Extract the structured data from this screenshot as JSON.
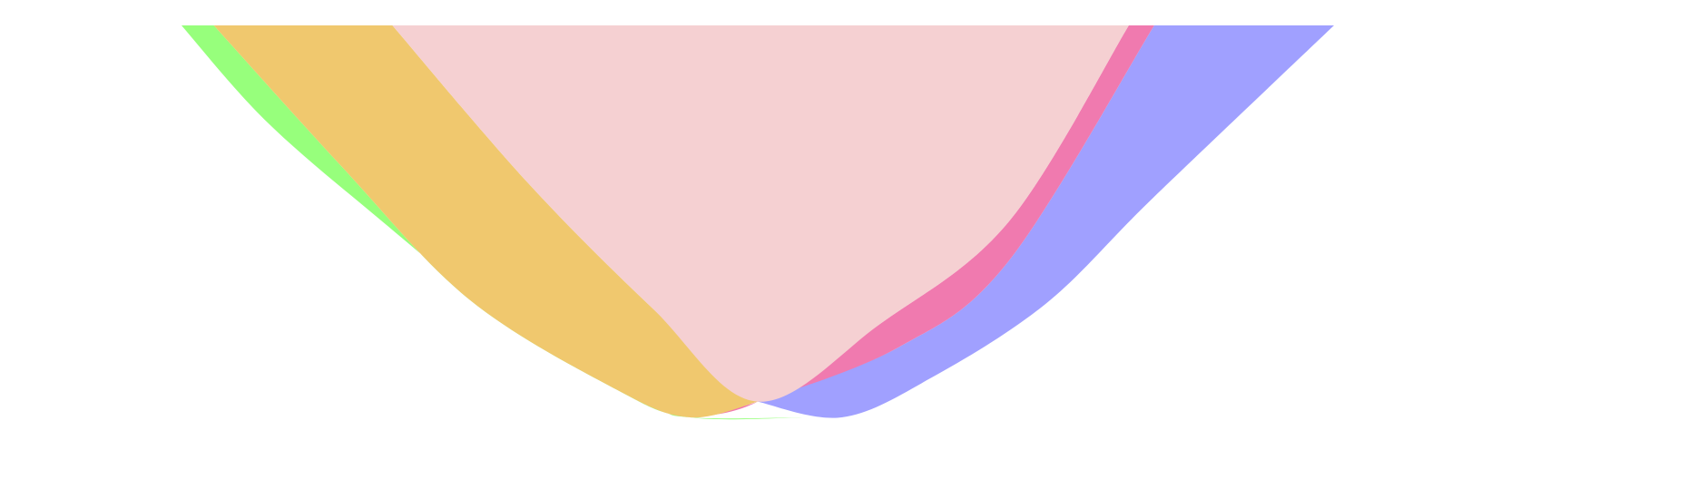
{
  "chart_data": {
    "type": "area",
    "title": "",
    "xlabel": "",
    "ylabel": "",
    "grid": false,
    "legend": "none",
    "xlim": [
      0,
      1
    ],
    "ylim": [
      0,
      1
    ],
    "series": [
      {
        "color": "#97FF7C",
        "opacity": 1,
        "lower": [
          [
            0.0,
            1.0
          ],
          [
            0.072,
            0.76
          ],
          [
            0.166,
            0.52
          ],
          [
            0.285,
            0.24
          ],
          [
            0.405,
            0.04
          ],
          [
            0.441,
            0.0
          ],
          [
            0.541,
            0.0
          ]
        ],
        "upper": [
          [
            0.028,
            1.0
          ],
          [
            0.139,
            0.64
          ],
          [
            0.25,
            0.3
          ],
          [
            0.378,
            0.07
          ],
          [
            0.441,
            0.0
          ],
          [
            0.541,
            0.0
          ]
        ]
      },
      {
        "color": "#A0A0FF",
        "opacity": 1,
        "lower": [
          [
            0.5,
            0.04
          ],
          [
            0.573,
            0.0
          ],
          [
            0.65,
            0.1
          ],
          [
            0.75,
            0.29
          ],
          [
            0.843,
            0.56
          ],
          [
            1.0,
            1.0
          ]
        ],
        "upper": [
          [
            0.5,
            0.04
          ],
          [
            0.623,
            0.18
          ],
          [
            0.718,
            0.4
          ],
          [
            0.844,
            1.0
          ]
        ]
      },
      {
        "color": "#F07AAF",
        "opacity": 1,
        "lower": [
          [
            0.441,
            0.0
          ],
          [
            0.5,
            0.04
          ],
          [
            0.607,
            0.24
          ],
          [
            0.718,
            0.5
          ],
          [
            0.822,
            1.0
          ]
        ],
        "upper": [
          [
            0.441,
            0.0
          ],
          [
            0.5,
            0.04
          ],
          [
            0.623,
            0.18
          ],
          [
            0.718,
            0.4
          ],
          [
            0.844,
            1.0
          ]
        ]
      },
      {
        "color": "#F0C86E",
        "opacity": 1,
        "lower": [
          [
            0.028,
            1.0
          ],
          [
            0.139,
            0.64
          ],
          [
            0.25,
            0.3
          ],
          [
            0.378,
            0.07
          ],
          [
            0.441,
            0.0
          ],
          [
            0.5,
            0.04
          ]
        ],
        "upper": [
          [
            0.183,
            1.0
          ],
          [
            0.3,
            0.6
          ],
          [
            0.408,
            0.28
          ],
          [
            0.5,
            0.04
          ]
        ]
      },
      {
        "color": "#F5D0D2",
        "opacity": 1,
        "lower": [
          [
            0.183,
            1.0
          ],
          [
            0.3,
            0.6
          ],
          [
            0.408,
            0.28
          ],
          [
            0.5,
            0.04
          ],
          [
            0.607,
            0.24
          ],
          [
            0.718,
            0.5
          ],
          [
            0.822,
            1.0
          ]
        ],
        "upper": [
          [
            0.183,
            1.0
          ],
          [
            0.822,
            1.0
          ]
        ]
      }
    ]
  }
}
